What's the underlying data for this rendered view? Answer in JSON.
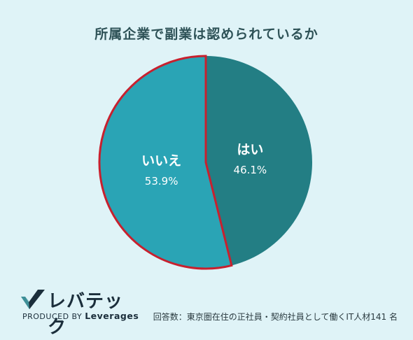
{
  "chart_data": {
    "type": "pie",
    "title": "所属企業で副業は認められているか",
    "slices": [
      {
        "label": "はい",
        "value": 46.1,
        "value_text": "46.1%",
        "color": "#237e84"
      },
      {
        "label": "いいえ",
        "value": 53.9,
        "value_text": "53.9%",
        "color": "#2aa4b5"
      }
    ],
    "highlight_stroke_color": "#c8202e",
    "start": "12 o'clock",
    "direction": "clockwise"
  },
  "logo": {
    "name": "レバテック",
    "produced_by": "PRODUCED BY",
    "brand": "Leverages"
  },
  "footnote": "回答数：東京圏在住の正社員・契約社員として働くIT人材141 名",
  "colors": {
    "background": "#dff3f7",
    "title": "#2e5257"
  }
}
